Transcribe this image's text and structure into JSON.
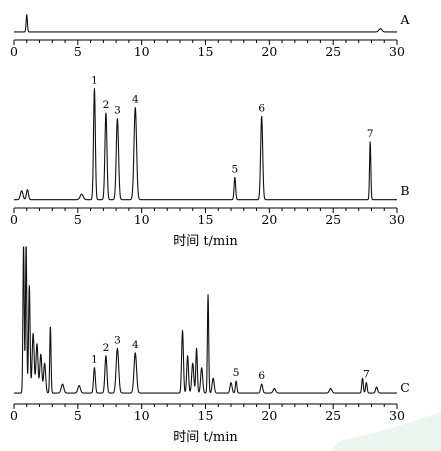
{
  "chart_data": [
    {
      "type": "line",
      "panel": "A",
      "x_unit": "min",
      "xlim": [
        0,
        30
      ],
      "xticks": [
        0,
        5,
        10,
        15,
        20,
        25,
        30
      ],
      "xlabel": "时间 t/min",
      "show_xlabel": false,
      "peak_labels": [],
      "baseline": 0.06,
      "series": [
        {
          "peaks": [
            {
              "rt": 1.0,
              "height": 0.95,
              "width": 0.05
            },
            {
              "rt": 28.7,
              "height": 0.18,
              "width": 0.12
            }
          ]
        }
      ]
    },
    {
      "type": "line",
      "panel": "B",
      "x_unit": "min",
      "xlim": [
        0,
        30
      ],
      "xticks": [
        0,
        5,
        10,
        15,
        20,
        25,
        30
      ],
      "xlabel": "时间 t/min",
      "show_xlabel": true,
      "baseline": 0.03,
      "peak_labels": [
        {
          "text": "1",
          "rt": 6.3
        },
        {
          "text": "2",
          "rt": 7.2
        },
        {
          "text": "3",
          "rt": 8.1
        },
        {
          "text": "4",
          "rt": 9.5
        },
        {
          "text": "5",
          "rt": 17.3
        },
        {
          "text": "6",
          "rt": 19.4
        },
        {
          "text": "7",
          "rt": 27.9
        }
      ],
      "series": [
        {
          "peaks": [
            {
              "rt": 0.6,
              "height": 0.08,
              "width": 0.1
            },
            {
              "rt": 1.05,
              "height": 0.09,
              "width": 0.08
            },
            {
              "rt": 5.3,
              "height": 0.05,
              "width": 0.12
            },
            {
              "rt": 6.3,
              "height": 1.0,
              "width": 0.07
            },
            {
              "rt": 7.2,
              "height": 0.78,
              "width": 0.08
            },
            {
              "rt": 8.1,
              "height": 0.73,
              "width": 0.09
            },
            {
              "rt": 9.5,
              "height": 0.83,
              "width": 0.1
            },
            {
              "rt": 17.3,
              "height": 0.2,
              "width": 0.06
            },
            {
              "rt": 19.4,
              "height": 0.75,
              "width": 0.08
            },
            {
              "rt": 27.9,
              "height": 0.52,
              "width": 0.05
            }
          ]
        }
      ]
    },
    {
      "type": "line",
      "panel": "C",
      "x_unit": "min",
      "xlim": [
        0,
        30
      ],
      "xticks": [
        0,
        5,
        10,
        15,
        20,
        25,
        30
      ],
      "xlabel": "时间 t/min",
      "show_xlabel": true,
      "baseline": 0.04,
      "peak_labels": [
        {
          "text": "1",
          "rt": 6.3
        },
        {
          "text": "2",
          "rt": 7.2
        },
        {
          "text": "3",
          "rt": 8.1
        },
        {
          "text": "4",
          "rt": 9.5
        },
        {
          "text": "5",
          "rt": 17.4
        },
        {
          "text": "6",
          "rt": 19.4
        },
        {
          "text": "7",
          "rt": 27.6
        }
      ],
      "series": [
        {
          "peaks": [
            {
              "rt": 0.75,
              "height": 1.0,
              "width": 0.05
            },
            {
              "rt": 0.95,
              "height": 1.0,
              "width": 0.05
            },
            {
              "rt": 1.2,
              "height": 0.72,
              "width": 0.06
            },
            {
              "rt": 1.5,
              "height": 0.4,
              "width": 0.08
            },
            {
              "rt": 1.8,
              "height": 0.33,
              "width": 0.08
            },
            {
              "rt": 2.1,
              "height": 0.26,
              "width": 0.08
            },
            {
              "rt": 2.4,
              "height": 0.2,
              "width": 0.08
            },
            {
              "rt": 2.85,
              "height": 0.45,
              "width": 0.05
            },
            {
              "rt": 3.8,
              "height": 0.06,
              "width": 0.1
            },
            {
              "rt": 5.1,
              "height": 0.05,
              "width": 0.1
            },
            {
              "rt": 6.3,
              "height": 0.17,
              "width": 0.07
            },
            {
              "rt": 7.2,
              "height": 0.25,
              "width": 0.08
            },
            {
              "rt": 8.1,
              "height": 0.3,
              "width": 0.1
            },
            {
              "rt": 9.5,
              "height": 0.27,
              "width": 0.1
            },
            {
              "rt": 13.2,
              "height": 0.42,
              "width": 0.07
            },
            {
              "rt": 13.6,
              "height": 0.25,
              "width": 0.07
            },
            {
              "rt": 14.0,
              "height": 0.2,
              "width": 0.08
            },
            {
              "rt": 14.3,
              "height": 0.3,
              "width": 0.06
            },
            {
              "rt": 14.7,
              "height": 0.17,
              "width": 0.08
            },
            {
              "rt": 15.2,
              "height": 0.66,
              "width": 0.05
            },
            {
              "rt": 15.6,
              "height": 0.1,
              "width": 0.08
            },
            {
              "rt": 17.0,
              "height": 0.07,
              "width": 0.08
            },
            {
              "rt": 17.4,
              "height": 0.08,
              "width": 0.06
            },
            {
              "rt": 19.4,
              "height": 0.06,
              "width": 0.08
            },
            {
              "rt": 20.4,
              "height": 0.03,
              "width": 0.1
            },
            {
              "rt": 24.8,
              "height": 0.03,
              "width": 0.1
            },
            {
              "rt": 27.3,
              "height": 0.1,
              "width": 0.06
            },
            {
              "rt": 27.6,
              "height": 0.07,
              "width": 0.06
            },
            {
              "rt": 28.4,
              "height": 0.04,
              "width": 0.08
            }
          ]
        }
      ]
    }
  ]
}
